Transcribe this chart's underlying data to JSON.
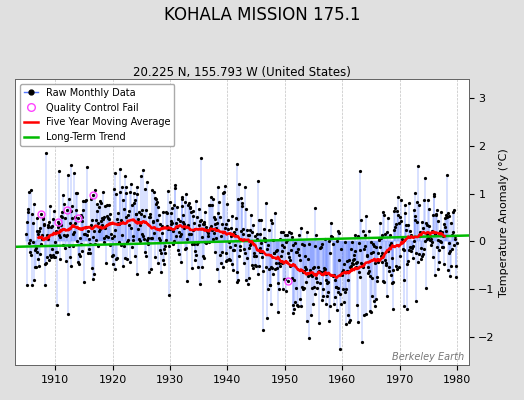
{
  "title": "KOHALA MISSION 175.1",
  "subtitle": "20.225 N, 155.793 W (United States)",
  "ylabel": "Temperature Anomaly (°C)",
  "watermark": "Berkeley Earth",
  "xlim": [
    1903,
    1982
  ],
  "ylim": [
    -2.6,
    3.4
  ],
  "yticks": [
    -2,
    -1,
    0,
    1,
    2,
    3
  ],
  "xticks": [
    1910,
    1920,
    1930,
    1940,
    1950,
    1960,
    1970,
    1980
  ],
  "start_year": 1905,
  "end_year": 1979,
  "seed": 17,
  "bg_color": "#e0e0e0",
  "plot_bg_color": "#ffffff",
  "raw_line_color": "#5577ff",
  "raw_marker_color": "#000000",
  "ma_color": "#ff0000",
  "trend_color": "#00bb00",
  "qc_fail_color": "#ff44ff",
  "grid_color": "#bbbbbb",
  "title_fontsize": 12,
  "subtitle_fontsize": 8.5,
  "tick_fontsize": 8,
  "ylabel_fontsize": 8
}
